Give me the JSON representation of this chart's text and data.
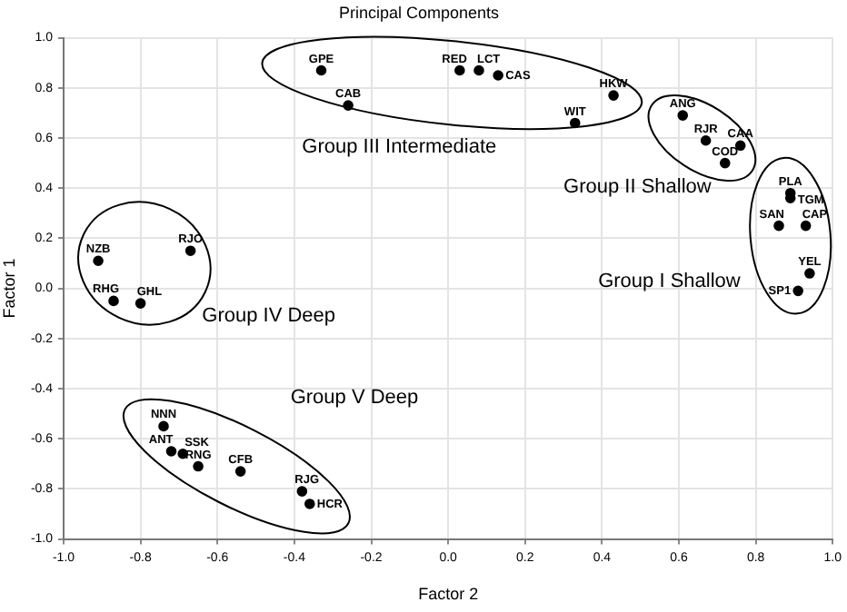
{
  "chart_data": {
    "type": "scatter",
    "title": "Principal Components",
    "xlabel": "Factor 2",
    "ylabel": "Factor 1",
    "annotations": [
      "Group III Intermediate",
      "Group II Shallow",
      "Group I Shallow",
      "Group IV Deep",
      "Group V Deep"
    ],
    "series": [
      {
        "color": "#000000",
        "x": [
          -0.33,
          -0.26,
          -0.91,
          -0.67,
          0.03,
          0.08,
          0.13,
          0.43,
          0.33,
          0.61,
          0.67,
          0.76,
          0.72,
          0.89,
          0.89,
          0.86,
          0.93,
          0.94,
          0.91,
          -0.87,
          -0.8,
          -0.74,
          -0.72,
          -0.69,
          -0.65,
          -0.54,
          -0.38,
          -0.36
        ],
        "values": [
          0.87,
          0.73,
          0.11,
          0.15,
          0.87,
          0.87,
          0.85,
          0.77,
          0.66,
          0.69,
          0.59,
          0.57,
          0.5,
          0.38,
          0.36,
          0.25,
          0.25,
          0.06,
          -0.01,
          -0.05,
          -0.06,
          -0.55,
          -0.65,
          -0.66,
          -0.71,
          -0.73,
          -0.81,
          -0.86
        ],
        "value_labels": [
          "GPE",
          "CAB",
          "NZB",
          "RJO",
          "RED",
          "LCT",
          "CAS",
          "HKW",
          "WIT",
          "ANG",
          "RJR",
          "CAA",
          "COD",
          "PLA",
          "TGM",
          "SAN",
          "CAP",
          "YEL",
          "SP1",
          "RHG",
          "GHL",
          "NNN",
          "ANT",
          "SSK",
          "RNG",
          "CFB",
          "RJG",
          "HCR"
        ]
      }
    ],
    "xlim": [
      -1,
      1
    ],
    "ylim": [
      -1,
      1
    ],
    "xticks": [
      {
        "value": -1,
        "label": "-1.0"
      },
      {
        "value": -0.8,
        "label": "-0.8"
      },
      {
        "value": -0.6,
        "label": "-0.6"
      },
      {
        "value": -0.4,
        "label": "-0.4"
      },
      {
        "value": -0.2,
        "label": "-0.2"
      },
      {
        "value": 0,
        "label": "0.0"
      },
      {
        "value": 0.2,
        "label": "0.2"
      },
      {
        "value": 0.4,
        "label": "0.4"
      },
      {
        "value": 0.6,
        "label": "0.6"
      },
      {
        "value": 0.8,
        "label": "0.8"
      },
      {
        "value": 1,
        "label": "1.0"
      }
    ],
    "yticks": [
      {
        "value": -1,
        "label": "-1.0"
      },
      {
        "value": -0.8,
        "label": "-0.8"
      },
      {
        "value": -0.6,
        "label": "-0.6"
      },
      {
        "value": -0.4,
        "label": "-0.4"
      },
      {
        "value": -0.2,
        "label": "-0.2"
      },
      {
        "value": 0,
        "label": "0.0"
      },
      {
        "value": 0.2,
        "label": "0.2"
      },
      {
        "value": 0.4,
        "label": "0.4"
      },
      {
        "value": 0.6,
        "label": "0.6"
      },
      {
        "value": 0.8,
        "label": "0.8"
      },
      {
        "value": 1,
        "label": "1.0"
      }
    ],
    "grid": true,
    "marker": "circle",
    "legend": false
  }
}
